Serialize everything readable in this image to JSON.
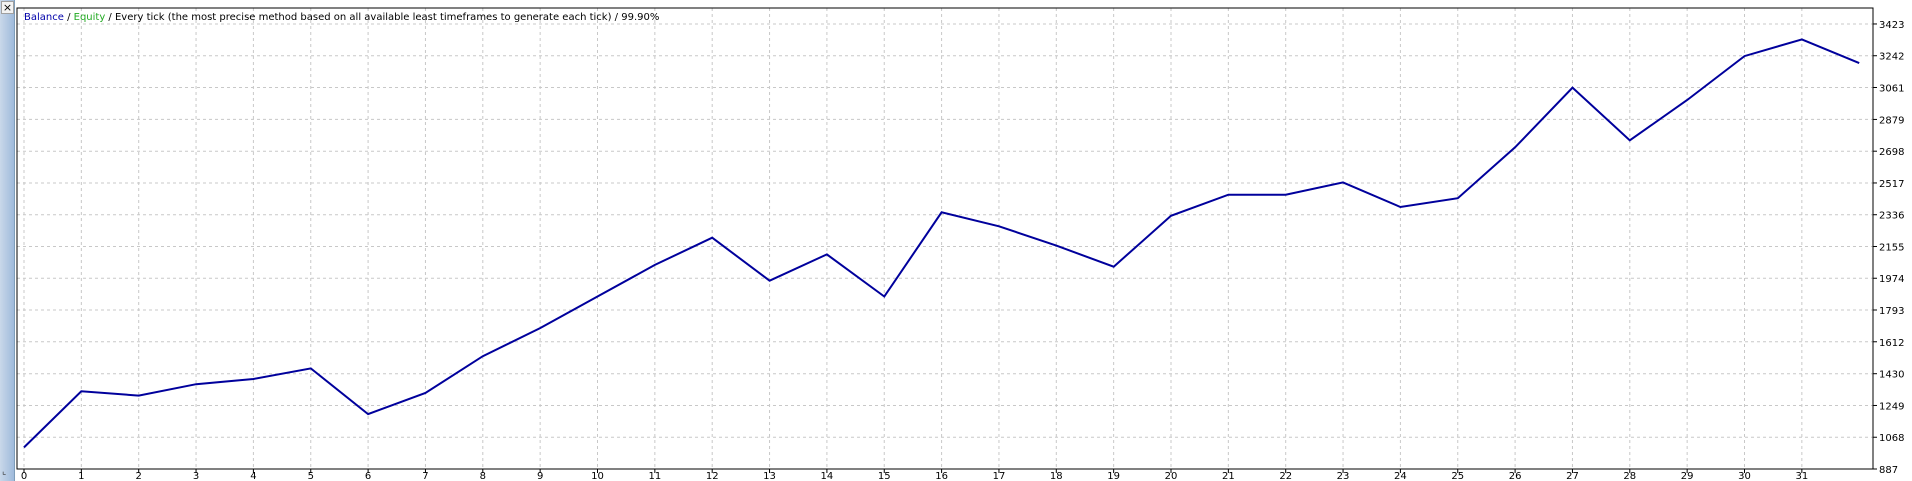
{
  "header": {
    "balance_label": "Balance",
    "sep1": " / ",
    "equity_label": "Equity",
    "sep2": " / ",
    "method_text": "Every tick (the most precise method based on all available least timeframes to generate each tick)",
    "sep3": " / ",
    "quality": "99.90%"
  },
  "window": {
    "close_label": "×",
    "corner_label": "⌞"
  },
  "colors": {
    "balance_line": "#00009c",
    "grid": "#c8c8c8",
    "axis": "#000000"
  },
  "chart_data": {
    "type": "line",
    "x": [
      0,
      1,
      2,
      3,
      4,
      5,
      6,
      7,
      8,
      9,
      10,
      11,
      12,
      13,
      14,
      15,
      16,
      17,
      18,
      19,
      20,
      21,
      22,
      23,
      24,
      25,
      26,
      27,
      28,
      29,
      30,
      31,
      32
    ],
    "x_tick_labels": [
      "0",
      "1",
      "2",
      "3",
      "4",
      "5",
      "6",
      "7",
      "8",
      "9",
      "10",
      "11",
      "12",
      "13",
      "14",
      "15",
      "16",
      "17",
      "18",
      "19",
      "20",
      "21",
      "22",
      "23",
      "24",
      "25",
      "26",
      "27",
      "28",
      "29",
      "30",
      "31"
    ],
    "y_tick_labels": [
      "887",
      "1068",
      "1249",
      "1430",
      "1612",
      "1793",
      "1974",
      "2155",
      "2336",
      "2517",
      "2698",
      "2879",
      "3061",
      "3242",
      "3423"
    ],
    "ylim": [
      887,
      3514
    ],
    "grid": true,
    "series": [
      {
        "name": "Balance",
        "values": [
          1010,
          1330,
          1305,
          1370,
          1400,
          1460,
          1200,
          1320,
          1530,
          1690,
          1870,
          2050,
          2205,
          1960,
          2110,
          1870,
          2350,
          2270,
          2160,
          2040,
          2330,
          2450,
          2450,
          2520,
          2380,
          2430,
          2720,
          3060,
          2760,
          2990,
          3240,
          3335,
          3200
        ]
      }
    ]
  }
}
